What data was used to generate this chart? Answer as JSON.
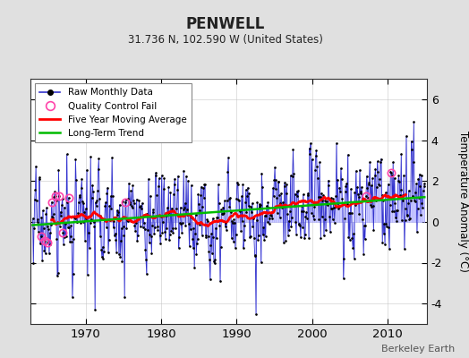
{
  "title": "PENWELL",
  "subtitle": "31.736 N, 102.590 W (United States)",
  "ylabel": "Temperature Anomaly (°C)",
  "watermark": "Berkeley Earth",
  "year_start": 1963.0,
  "year_end": 2014.92,
  "ylim": [
    -5.0,
    7.0
  ],
  "yticks": [
    -4,
    -2,
    0,
    2,
    4,
    6
  ],
  "xticks": [
    1970,
    1980,
    1990,
    2000,
    2010
  ],
  "bg_color": "#e0e0e0",
  "plot_bg_color": "#ffffff",
  "raw_line_color": "#3333cc",
  "raw_fill_color": "#aaaaff",
  "raw_dot_color": "#000000",
  "ma_color": "#ff0000",
  "trend_color": "#00bb00",
  "qc_color": "#ff44aa",
  "seed": 42,
  "trend_slope_per_year": 0.022,
  "trend_intercept": -0.12
}
